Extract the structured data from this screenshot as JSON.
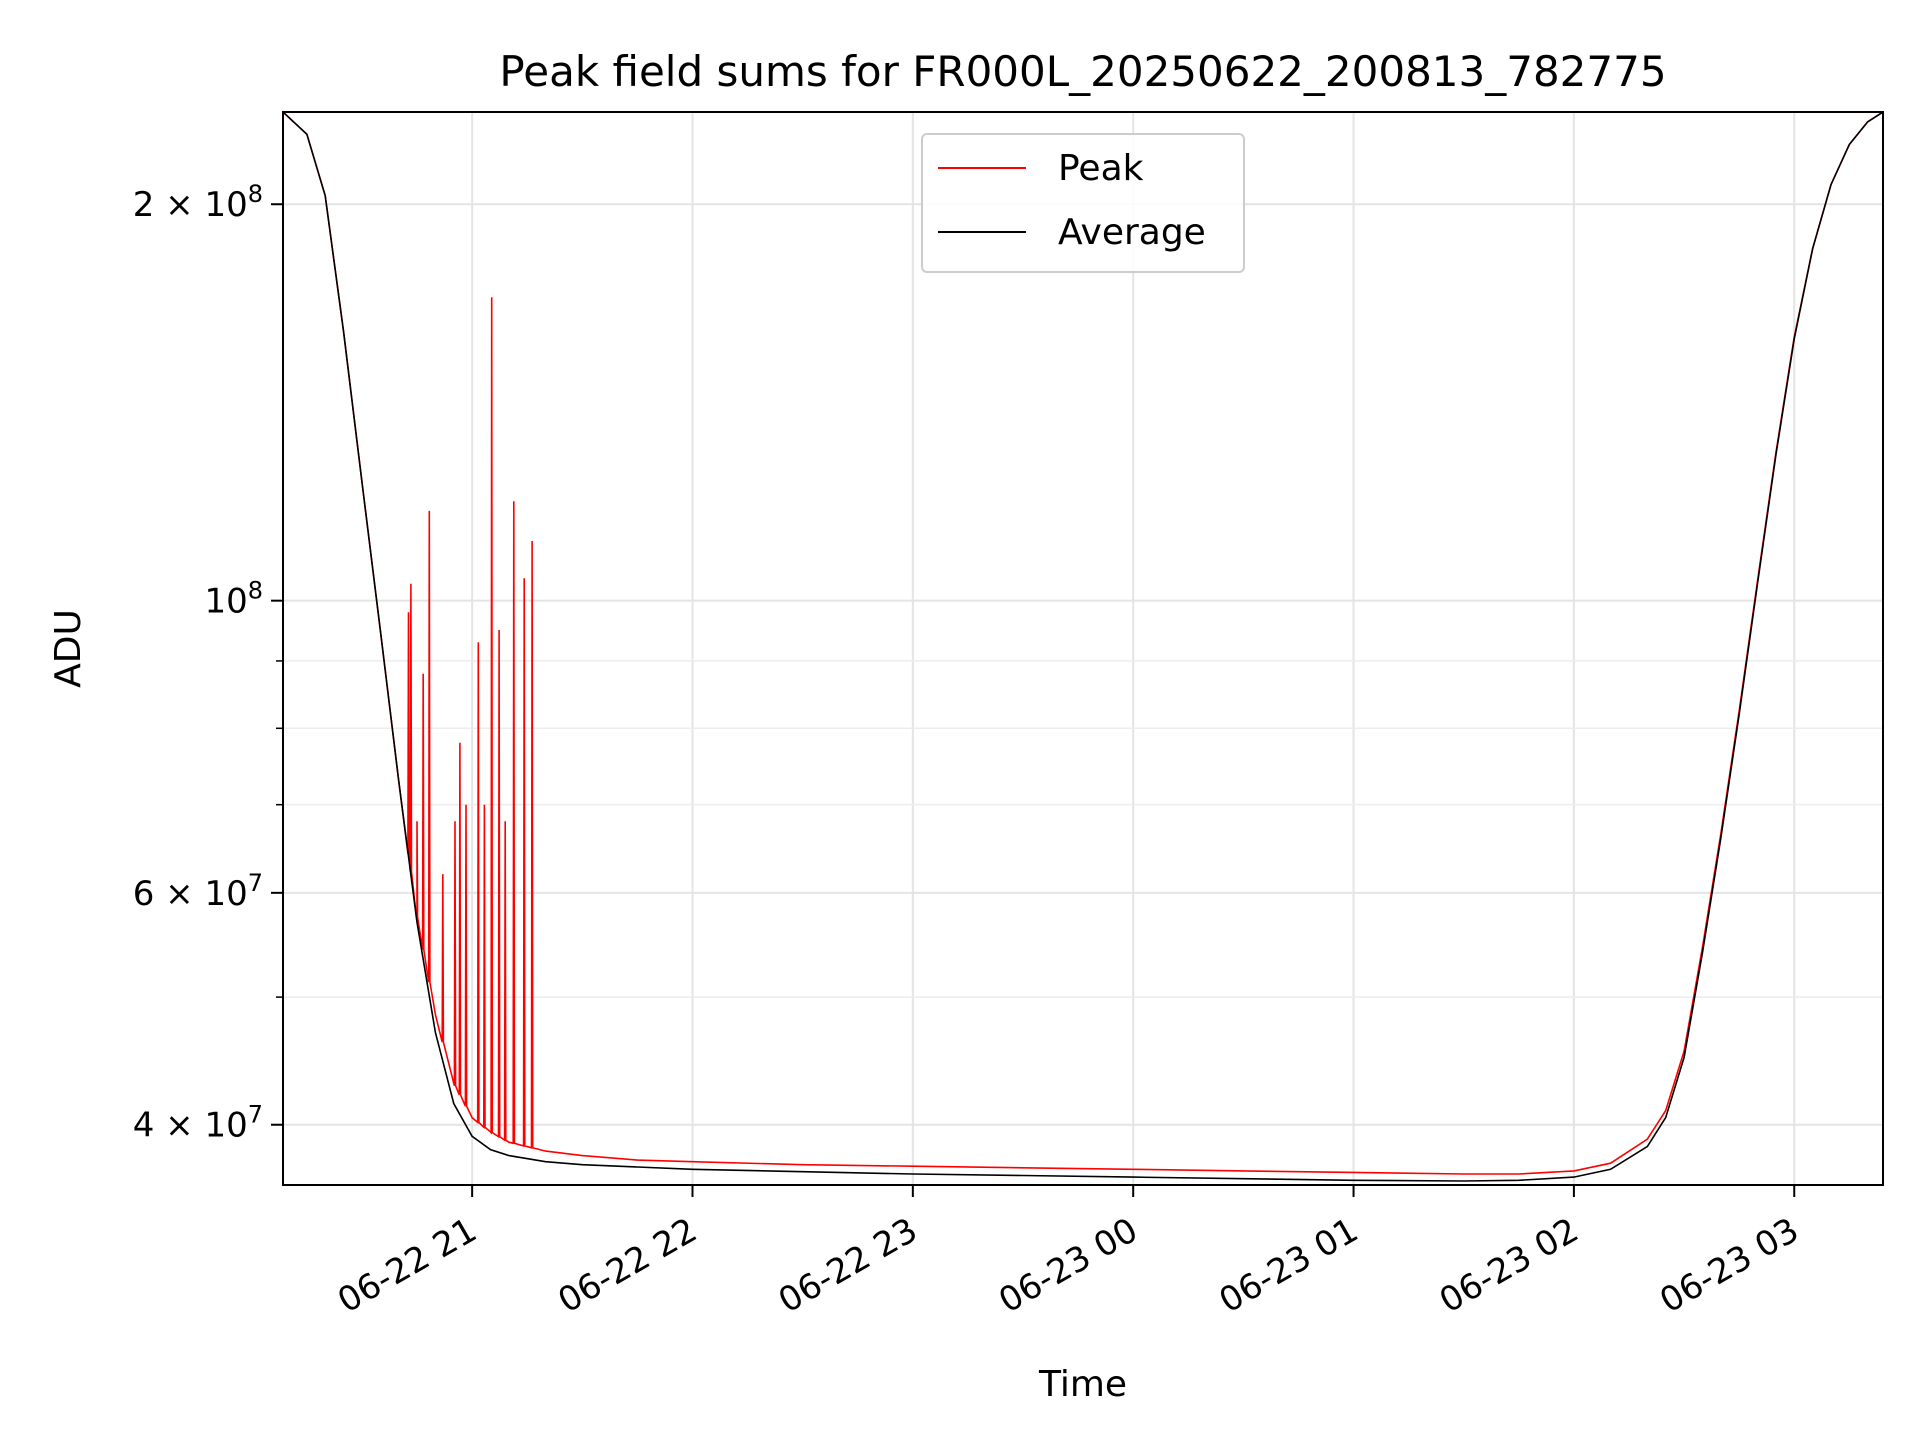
{
  "chart_data": {
    "type": "line",
    "title": "Peak field sums for FR000L_20250622_200813_782775",
    "xlabel": "Time",
    "ylabel": "ADU",
    "yscale": "log",
    "ylim": [
      36000000,
      235000000
    ],
    "xlim": [
      "2025-06-22 20:08:30",
      "2025-06-23 03:24:10"
    ],
    "x_ticks": [
      "06-22 21",
      "06-22 22",
      "06-22 23",
      "06-23 00",
      "06-23 01",
      "06-23 02",
      "06-23 03"
    ],
    "y_ticks": [
      "2 × 10^8",
      "10^8",
      "6 × 10^7",
      "4 × 10^7"
    ],
    "grid": true,
    "legend_position": "upper center",
    "colors": {
      "Peak": "#ff0000",
      "Average": "#000000"
    },
    "series": [
      {
        "name": "Average",
        "x": [
          "2025-06-22 20:08:30",
          "2025-06-22 20:15",
          "2025-06-22 20:20",
          "2025-06-22 20:25",
          "2025-06-22 20:30",
          "2025-06-22 20:35",
          "2025-06-22 20:40",
          "2025-06-22 20:45",
          "2025-06-22 20:50",
          "2025-06-22 20:55",
          "2025-06-22 21:00",
          "2025-06-22 21:05",
          "2025-06-22 21:10",
          "2025-06-22 21:20",
          "2025-06-22 21:30",
          "2025-06-22 21:45",
          "2025-06-22 22:00",
          "2025-06-22 22:30",
          "2025-06-22 23:00",
          "2025-06-22 23:30",
          "2025-06-23 00:00",
          "2025-06-23 00:30",
          "2025-06-23 01:00",
          "2025-06-23 01:30",
          "2025-06-23 01:45",
          "2025-06-23 02:00",
          "2025-06-23 02:10",
          "2025-06-23 02:20",
          "2025-06-23 02:25",
          "2025-06-23 02:30",
          "2025-06-23 02:35",
          "2025-06-23 02:40",
          "2025-06-23 02:45",
          "2025-06-23 02:50",
          "2025-06-23 02:55",
          "2025-06-23 03:00",
          "2025-06-23 03:05",
          "2025-06-23 03:10",
          "2025-06-23 03:15",
          "2025-06-23 03:20",
          "2025-06-23 03:24:10"
        ],
        "y": [
          235000000,
          226000000,
          203000000,
          160000000,
          123000000,
          95000000,
          73000000,
          57000000,
          47000000,
          41500000,
          39200000,
          38300000,
          37900000,
          37500000,
          37300000,
          37150000,
          37000000,
          36850000,
          36700000,
          36600000,
          36500000,
          36400000,
          36300000,
          36250000,
          36300000,
          36500000,
          37000000,
          38500000,
          40500000,
          45000000,
          54000000,
          66000000,
          82000000,
          103000000,
          129000000,
          158000000,
          185000000,
          207000000,
          222000000,
          231000000,
          235000000
        ]
      },
      {
        "name": "Peak",
        "x": [
          "2025-06-22 20:08:30",
          "2025-06-22 20:15",
          "2025-06-22 20:20",
          "2025-06-22 20:25",
          "2025-06-22 20:30",
          "2025-06-22 20:35",
          "2025-06-22 20:40",
          "2025-06-22 20:45",
          "2025-06-22 20:50",
          "2025-06-22 20:55",
          "2025-06-22 21:00",
          "2025-06-22 21:05",
          "2025-06-22 21:10",
          "2025-06-22 21:20",
          "2025-06-22 21:30",
          "2025-06-22 21:45",
          "2025-06-22 22:00",
          "2025-06-22 22:30",
          "2025-06-22 23:00",
          "2025-06-22 23:30",
          "2025-06-23 00:00",
          "2025-06-23 00:30",
          "2025-06-23 01:00",
          "2025-06-23 01:30",
          "2025-06-23 01:45",
          "2025-06-23 02:00",
          "2025-06-23 02:10",
          "2025-06-23 02:20",
          "2025-06-23 02:25",
          "2025-06-23 02:30",
          "2025-06-23 02:35",
          "2025-06-23 02:40",
          "2025-06-23 02:45",
          "2025-06-23 02:50",
          "2025-06-23 02:55",
          "2025-06-23 03:00",
          "2025-06-23 03:05",
          "2025-06-23 03:10",
          "2025-06-23 03:15",
          "2025-06-23 03:20",
          "2025-06-23 03:24:10"
        ],
        "y": [
          235000000,
          226000000,
          203000000,
          160000000,
          123000000,
          95000000,
          73000000,
          57500000,
          48500000,
          43000000,
          40500000,
          39500000,
          38800000,
          38200000,
          37900000,
          37600000,
          37500000,
          37300000,
          37200000,
          37100000,
          37000000,
          36900000,
          36800000,
          36700000,
          36700000,
          36900000,
          37400000,
          39000000,
          41000000,
          45500000,
          54500000,
          66500000,
          82500000,
          103500000,
          129500000,
          158500000,
          185000000,
          207000000,
          222000000,
          231000000,
          235000000
        ],
        "spikes": [
          {
            "x": "2025-06-22 20:42:40",
            "y": 98000000
          },
          {
            "x": "2025-06-22 20:43:20",
            "y": 103000000
          },
          {
            "x": "2025-06-22 20:45:00",
            "y": 68000000
          },
          {
            "x": "2025-06-22 20:46:40",
            "y": 88000000
          },
          {
            "x": "2025-06-22 20:48:20",
            "y": 117000000
          },
          {
            "x": "2025-06-22 20:52:00",
            "y": 62000000
          },
          {
            "x": "2025-06-22 20:55:20",
            "y": 68000000
          },
          {
            "x": "2025-06-22 20:56:40",
            "y": 78000000
          },
          {
            "x": "2025-06-22 20:58:20",
            "y": 70000000
          },
          {
            "x": "2025-06-22 21:01:40",
            "y": 93000000
          },
          {
            "x": "2025-06-22 21:03:20",
            "y": 70000000
          },
          {
            "x": "2025-06-22 21:05:20",
            "y": 170000000
          },
          {
            "x": "2025-06-22 21:07:20",
            "y": 95000000
          },
          {
            "x": "2025-06-22 21:09:00",
            "y": 68000000
          },
          {
            "x": "2025-06-22 21:11:20",
            "y": 119000000
          },
          {
            "x": "2025-06-22 21:14:10",
            "y": 104000000
          },
          {
            "x": "2025-06-22 21:16:20",
            "y": 111000000
          }
        ]
      }
    ]
  }
}
